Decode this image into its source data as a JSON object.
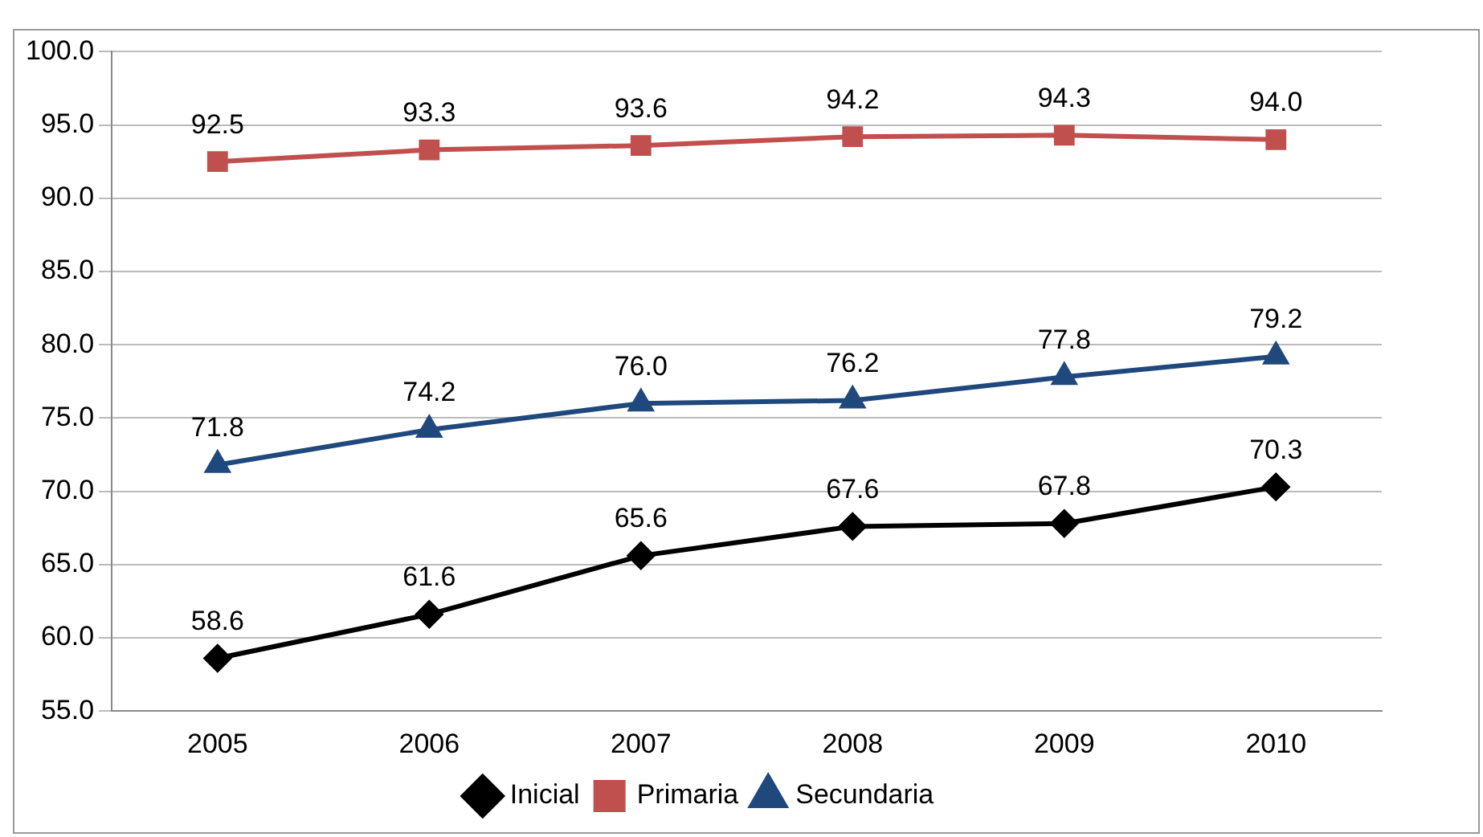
{
  "chart_data": {
    "type": "line",
    "categories": [
      "2005",
      "2006",
      "2007",
      "2008",
      "2009",
      "2010"
    ],
    "series": [
      {
        "name": "Inicial",
        "color": "#000000",
        "marker": "diamond",
        "values": [
          58.6,
          61.6,
          65.6,
          67.6,
          67.8,
          70.3
        ],
        "value_labels": [
          "58.6",
          "61.6",
          "65.6",
          "67.6",
          "67.8",
          "70.3"
        ]
      },
      {
        "name": "Primaria",
        "color": "#c0504d",
        "marker": "square",
        "values": [
          92.5,
          93.3,
          93.6,
          94.2,
          94.3,
          94.0
        ],
        "value_labels": [
          "92.5",
          "93.3",
          "93.6",
          "94.2",
          "94.3",
          "94.0"
        ]
      },
      {
        "name": "Secundaria",
        "color": "#1f497d",
        "marker": "triangle",
        "values": [
          71.8,
          74.2,
          76.0,
          76.2,
          77.8,
          79.2
        ],
        "value_labels": [
          "71.8",
          "74.2",
          "76.0",
          "76.2",
          "77.8",
          "79.2"
        ]
      }
    ],
    "ylim": [
      55,
      100
    ],
    "yticks": [
      {
        "value": 55,
        "label": "55.0"
      },
      {
        "value": 60,
        "label": "60.0"
      },
      {
        "value": 65,
        "label": "65.0"
      },
      {
        "value": 70,
        "label": "70.0"
      },
      {
        "value": 75,
        "label": "75.0"
      },
      {
        "value": 80,
        "label": "80.0"
      },
      {
        "value": 85,
        "label": "85.0"
      },
      {
        "value": 90,
        "label": "90.0"
      },
      {
        "value": 95,
        "label": "95.0"
      },
      {
        "value": 100,
        "label": "100.0"
      }
    ],
    "grid": "y",
    "legend": "bottom"
  }
}
